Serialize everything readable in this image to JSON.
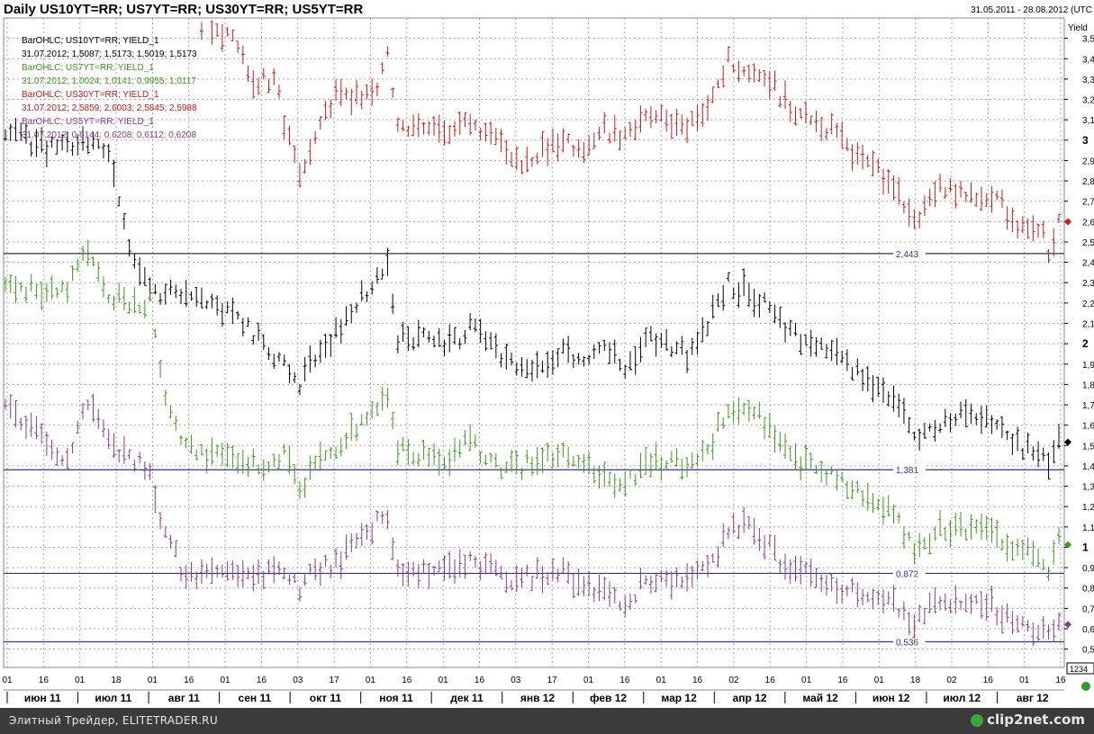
{
  "header": {
    "title": "Daily US10YT=RR; US7YT=RR; US30YT=RR; US5YT=RR",
    "date_range": "31.05.2011 - 28.08.2012 (UTC"
  },
  "legend": [
    {
      "label": "BarOHLC; US10YT=RR; YIELD_1",
      "values": "31.07.2012; 1,5087; 1,5173; 1,5019; 1,5173",
      "color": "#000000"
    },
    {
      "label": "BarOHLC; US7YT=RR; YIELD_1",
      "values": "31.07.2012; 1,0024; 1,0141; 0,9955; 1,0117",
      "color": "#3a9a1a"
    },
    {
      "label": "BarOHLC; US30YT=RR; YIELD_1",
      "values": "31.07.2012; 2,5859; 2,6003; 2,5845; 2,5988",
      "color": "#d01818"
    },
    {
      "label": "BarOHLC; US5YT=RR; YIELD_1",
      "values": "31.07.2012; 0,6144; 0,6208; 0,6112; 0,6208",
      "color": "#8a3a8a"
    }
  ],
  "chart_data": {
    "type": "bar",
    "subtype": "ohlc",
    "ylabel": "Yield",
    "ylim": [
      0.41,
      3.6
    ],
    "y_ticks": [
      "0,5",
      "0,6",
      "0,7",
      "0,8",
      "0,9",
      "1",
      "1,1",
      "1,2",
      "1,3",
      "1,4",
      "1,5",
      "1,6",
      "1,7",
      "1,8",
      "1,9",
      "2",
      "2,1",
      "2,2",
      "2,3",
      "2,4",
      "2,5",
      "2,6",
      "2,7",
      "2,8",
      "2,9",
      "3",
      "3,1",
      "3,2",
      "3,3",
      "3,4",
      "3,5"
    ],
    "axis_box_label": "1234",
    "x_day_labels": [
      "01",
      "16",
      "01",
      "18",
      "01",
      "16",
      "01",
      "16",
      "03",
      "17",
      "01",
      "16",
      "01",
      "16",
      "03",
      "17",
      "01",
      "16",
      "01",
      "16",
      "02",
      "16",
      "01",
      "16",
      "01",
      "18",
      "02",
      "16",
      "01",
      "16"
    ],
    "x_month_labels": [
      "июн 11",
      "июл 11",
      "авг 11",
      "сен 11",
      "окт 11",
      "ноя 11",
      "дек 11",
      "янв 12",
      "фев 12",
      "мар 12",
      "апр 12",
      "май 12",
      "июн 12",
      "июл 12",
      "авг 12"
    ],
    "hlines": [
      {
        "value": 2.443,
        "label": "2,443"
      },
      {
        "value": 1.381,
        "label": "1,381"
      },
      {
        "value": 0.872,
        "label": "0,872"
      },
      {
        "value": 0.536,
        "label": "0,536"
      }
    ],
    "last_values": [
      {
        "series": "US30YT=RR",
        "value": 2.599
      },
      {
        "series": "US10YT=RR",
        "value": 1.517
      },
      {
        "series": "US7YT=RR",
        "value": 1.012
      },
      {
        "series": "US5YT=RR",
        "value": 0.621
      }
    ],
    "series": [
      {
        "name": "US10YT=RR",
        "color": "#000000",
        "waypoints": [
          [
            0,
            3.05
          ],
          [
            8,
            2.95
          ],
          [
            14,
            2.98
          ],
          [
            20,
            2.95
          ],
          [
            24,
            2.5
          ],
          [
            28,
            2.25
          ],
          [
            34,
            2.25
          ],
          [
            40,
            2.2
          ],
          [
            48,
            2.05
          ],
          [
            54,
            1.9
          ],
          [
            57,
            1.78
          ],
          [
            60,
            1.95
          ],
          [
            64,
            2.05
          ],
          [
            68,
            2.2
          ],
          [
            72,
            2.3
          ],
          [
            74,
            2.38
          ],
          [
            76,
            2.03
          ],
          [
            80,
            2.02
          ],
          [
            86,
            2.0
          ],
          [
            90,
            2.08
          ],
          [
            96,
            1.95
          ],
          [
            100,
            1.85
          ],
          [
            104,
            1.92
          ],
          [
            108,
            1.97
          ],
          [
            112,
            1.93
          ],
          [
            116,
            2.0
          ],
          [
            120,
            1.85
          ],
          [
            124,
            2.02
          ],
          [
            128,
            2.0
          ],
          [
            132,
            1.95
          ],
          [
            136,
            2.1
          ],
          [
            140,
            2.3
          ],
          [
            144,
            2.25
          ],
          [
            148,
            2.2
          ],
          [
            152,
            2.05
          ],
          [
            156,
            2.0
          ],
          [
            160,
            1.95
          ],
          [
            164,
            1.88
          ],
          [
            168,
            1.8
          ],
          [
            172,
            1.75
          ],
          [
            176,
            1.55
          ],
          [
            180,
            1.6
          ],
          [
            184,
            1.65
          ],
          [
            188,
            1.66
          ],
          [
            192,
            1.6
          ],
          [
            196,
            1.5
          ],
          [
            200,
            1.47
          ],
          [
            202,
            1.4
          ],
          [
            204,
            1.52
          ]
        ]
      },
      {
        "name": "US7YT=RR",
        "color": "#3a9a1a",
        "waypoints": [
          [
            0,
            2.3
          ],
          [
            8,
            2.25
          ],
          [
            12,
            2.25
          ],
          [
            16,
            2.48
          ],
          [
            20,
            2.25
          ],
          [
            24,
            2.2
          ],
          [
            28,
            2.2
          ],
          [
            30,
            1.85
          ],
          [
            34,
            1.5
          ],
          [
            40,
            1.45
          ],
          [
            48,
            1.4
          ],
          [
            54,
            1.45
          ],
          [
            57,
            1.3
          ],
          [
            60,
            1.4
          ],
          [
            64,
            1.45
          ],
          [
            68,
            1.6
          ],
          [
            72,
            1.7
          ],
          [
            74,
            1.75
          ],
          [
            76,
            1.48
          ],
          [
            80,
            1.45
          ],
          [
            86,
            1.45
          ],
          [
            90,
            1.52
          ],
          [
            96,
            1.4
          ],
          [
            100,
            1.4
          ],
          [
            104,
            1.45
          ],
          [
            108,
            1.47
          ],
          [
            112,
            1.4
          ],
          [
            116,
            1.38
          ],
          [
            120,
            1.3
          ],
          [
            124,
            1.42
          ],
          [
            128,
            1.42
          ],
          [
            132,
            1.4
          ],
          [
            136,
            1.48
          ],
          [
            140,
            1.7
          ],
          [
            144,
            1.7
          ],
          [
            148,
            1.6
          ],
          [
            152,
            1.45
          ],
          [
            156,
            1.4
          ],
          [
            160,
            1.36
          ],
          [
            164,
            1.28
          ],
          [
            168,
            1.22
          ],
          [
            172,
            1.15
          ],
          [
            176,
            0.98
          ],
          [
            180,
            1.08
          ],
          [
            184,
            1.1
          ],
          [
            188,
            1.1
          ],
          [
            192,
            1.05
          ],
          [
            196,
            0.98
          ],
          [
            200,
            0.95
          ],
          [
            202,
            0.9
          ],
          [
            204,
            1.02
          ]
        ]
      },
      {
        "name": "US30YT=RR",
        "color": "#d01818",
        "waypoints": [
          [
            34,
            3.62
          ],
          [
            40,
            3.55
          ],
          [
            44,
            3.5
          ],
          [
            48,
            3.3
          ],
          [
            52,
            3.3
          ],
          [
            54,
            3.1
          ],
          [
            57,
            2.8
          ],
          [
            60,
            3.0
          ],
          [
            64,
            3.25
          ],
          [
            68,
            3.2
          ],
          [
            72,
            3.25
          ],
          [
            74,
            3.42
          ],
          [
            76,
            3.05
          ],
          [
            80,
            3.1
          ],
          [
            86,
            3.0
          ],
          [
            90,
            3.1
          ],
          [
            96,
            3.0
          ],
          [
            100,
            2.85
          ],
          [
            104,
            2.95
          ],
          [
            108,
            3.0
          ],
          [
            112,
            2.95
          ],
          [
            116,
            3.05
          ],
          [
            120,
            3.0
          ],
          [
            124,
            3.1
          ],
          [
            128,
            3.1
          ],
          [
            132,
            3.05
          ],
          [
            136,
            3.15
          ],
          [
            140,
            3.4
          ],
          [
            144,
            3.35
          ],
          [
            148,
            3.3
          ],
          [
            152,
            3.15
          ],
          [
            156,
            3.1
          ],
          [
            160,
            3.05
          ],
          [
            164,
            2.95
          ],
          [
            168,
            2.85
          ],
          [
            172,
            2.8
          ],
          [
            176,
            2.58
          ],
          [
            180,
            2.75
          ],
          [
            184,
            2.75
          ],
          [
            188,
            2.72
          ],
          [
            192,
            2.7
          ],
          [
            196,
            2.6
          ],
          [
            200,
            2.58
          ],
          [
            202,
            2.47
          ],
          [
            204,
            2.6
          ]
        ]
      },
      {
        "name": "US5YT=RR",
        "color": "#8a3a8a",
        "waypoints": [
          [
            0,
            1.7
          ],
          [
            8,
            1.5
          ],
          [
            12,
            1.45
          ],
          [
            16,
            1.72
          ],
          [
            20,
            1.5
          ],
          [
            24,
            1.45
          ],
          [
            28,
            1.4
          ],
          [
            30,
            1.15
          ],
          [
            34,
            0.9
          ],
          [
            40,
            0.85
          ],
          [
            48,
            0.85
          ],
          [
            54,
            0.88
          ],
          [
            57,
            0.8
          ],
          [
            60,
            0.9
          ],
          [
            64,
            0.92
          ],
          [
            68,
            1.05
          ],
          [
            72,
            1.12
          ],
          [
            74,
            1.16
          ],
          [
            76,
            0.9
          ],
          [
            80,
            0.88
          ],
          [
            86,
            0.9
          ],
          [
            90,
            0.95
          ],
          [
            96,
            0.85
          ],
          [
            100,
            0.85
          ],
          [
            104,
            0.87
          ],
          [
            108,
            0.88
          ],
          [
            112,
            0.8
          ],
          [
            116,
            0.77
          ],
          [
            120,
            0.72
          ],
          [
            124,
            0.85
          ],
          [
            128,
            0.85
          ],
          [
            132,
            0.83
          ],
          [
            136,
            0.88
          ],
          [
            140,
            1.1
          ],
          [
            144,
            1.12
          ],
          [
            148,
            1.0
          ],
          [
            152,
            0.88
          ],
          [
            156,
            0.86
          ],
          [
            160,
            0.83
          ],
          [
            164,
            0.78
          ],
          [
            168,
            0.76
          ],
          [
            172,
            0.73
          ],
          [
            176,
            0.64
          ],
          [
            180,
            0.72
          ],
          [
            184,
            0.74
          ],
          [
            188,
            0.73
          ],
          [
            192,
            0.7
          ],
          [
            196,
            0.62
          ],
          [
            200,
            0.59
          ],
          [
            202,
            0.55
          ],
          [
            204,
            0.62
          ]
        ]
      }
    ]
  },
  "footer": {
    "source": "Элитный Трейдер, ELITETRADER.RU",
    "watermark": "clip2net.com"
  }
}
